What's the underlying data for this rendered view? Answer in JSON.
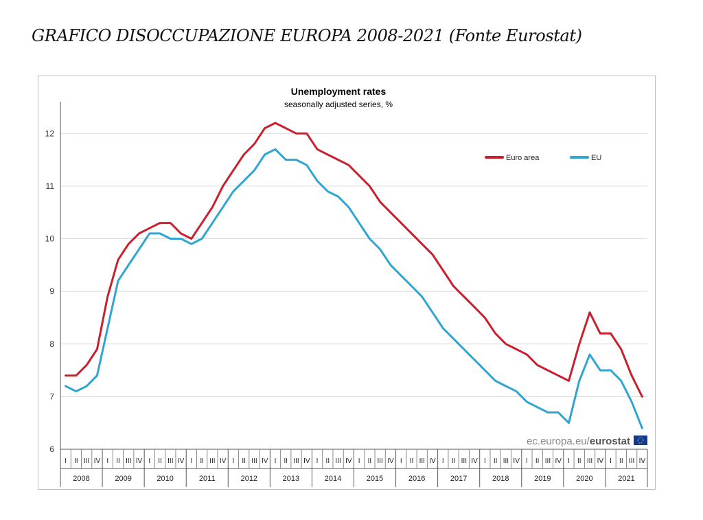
{
  "page": {
    "title": "GRAFICO DISOCCUPAZIONE EUROPA 2008-2021 (Fonte Eurostat)"
  },
  "chart_data": {
    "type": "line",
    "title": "Unemployment rates",
    "subtitle": "seasonally adjusted series, %",
    "source": "ec.europa.eu/eurostat",
    "source_prefix": "ec.europa.eu/",
    "source_brand": "eurostat",
    "xlabel": "",
    "ylabel": "",
    "ylim": [
      6,
      12.5
    ],
    "yticks": [
      6,
      7,
      8,
      9,
      10,
      11,
      12
    ],
    "grid": true,
    "legend_position": "top-right",
    "x_start": "2008-01",
    "x_end": "2021-12",
    "x_frequency": "quarterly",
    "quarter_labels": [
      "I",
      "II",
      "III",
      "IV"
    ],
    "years": [
      "2008",
      "2009",
      "2010",
      "2011",
      "2012",
      "2013",
      "2014",
      "2015",
      "2016",
      "2017",
      "2018",
      "2019",
      "2020",
      "2021"
    ],
    "x": [
      "2008-Q1",
      "2008-Q2",
      "2008-Q3",
      "2008-Q4",
      "2009-Q1",
      "2009-Q2",
      "2009-Q3",
      "2009-Q4",
      "2010-Q1",
      "2010-Q2",
      "2010-Q3",
      "2010-Q4",
      "2011-Q1",
      "2011-Q2",
      "2011-Q3",
      "2011-Q4",
      "2012-Q1",
      "2012-Q2",
      "2012-Q3",
      "2012-Q4",
      "2013-Q1",
      "2013-Q2",
      "2013-Q3",
      "2013-Q4",
      "2014-Q1",
      "2014-Q2",
      "2014-Q3",
      "2014-Q4",
      "2015-Q1",
      "2015-Q2",
      "2015-Q3",
      "2015-Q4",
      "2016-Q1",
      "2016-Q2",
      "2016-Q3",
      "2016-Q4",
      "2017-Q1",
      "2017-Q2",
      "2017-Q3",
      "2017-Q4",
      "2018-Q1",
      "2018-Q2",
      "2018-Q3",
      "2018-Q4",
      "2019-Q1",
      "2019-Q2",
      "2019-Q3",
      "2019-Q4",
      "2020-Q1",
      "2020-Q2",
      "2020-Q3",
      "2020-Q4",
      "2021-Q1",
      "2021-Q2",
      "2021-Q3",
      "2021-Q4"
    ],
    "series": [
      {
        "name": "Euro area",
        "color": "#c8202f",
        "values": [
          7.4,
          7.4,
          7.6,
          7.9,
          8.9,
          9.6,
          9.9,
          10.1,
          10.2,
          10.3,
          10.3,
          10.1,
          10.0,
          10.3,
          10.6,
          11.0,
          11.3,
          11.6,
          11.8,
          12.1,
          12.2,
          12.1,
          12.0,
          12.0,
          11.7,
          11.6,
          11.5,
          11.4,
          11.2,
          11.0,
          10.7,
          10.5,
          10.3,
          10.1,
          9.9,
          9.7,
          9.4,
          9.1,
          8.9,
          8.7,
          8.5,
          8.2,
          8.0,
          7.9,
          7.8,
          7.6,
          7.5,
          7.4,
          7.3,
          8.0,
          8.6,
          8.2,
          8.2,
          7.9,
          7.4,
          7.0
        ]
      },
      {
        "name": "EU",
        "color": "#2ea6cf",
        "values": [
          7.2,
          7.1,
          7.2,
          7.4,
          8.3,
          9.2,
          9.5,
          9.8,
          10.1,
          10.1,
          10.0,
          10.0,
          9.9,
          10.0,
          10.3,
          10.6,
          10.9,
          11.1,
          11.3,
          11.6,
          11.7,
          11.5,
          11.5,
          11.4,
          11.1,
          10.9,
          10.8,
          10.6,
          10.3,
          10.0,
          9.8,
          9.5,
          9.3,
          9.1,
          8.9,
          8.6,
          8.3,
          8.1,
          7.9,
          7.7,
          7.5,
          7.3,
          7.2,
          7.1,
          6.9,
          6.8,
          6.7,
          6.7,
          6.5,
          7.3,
          7.8,
          7.5,
          7.5,
          7.3,
          6.9,
          6.4
        ]
      }
    ]
  }
}
